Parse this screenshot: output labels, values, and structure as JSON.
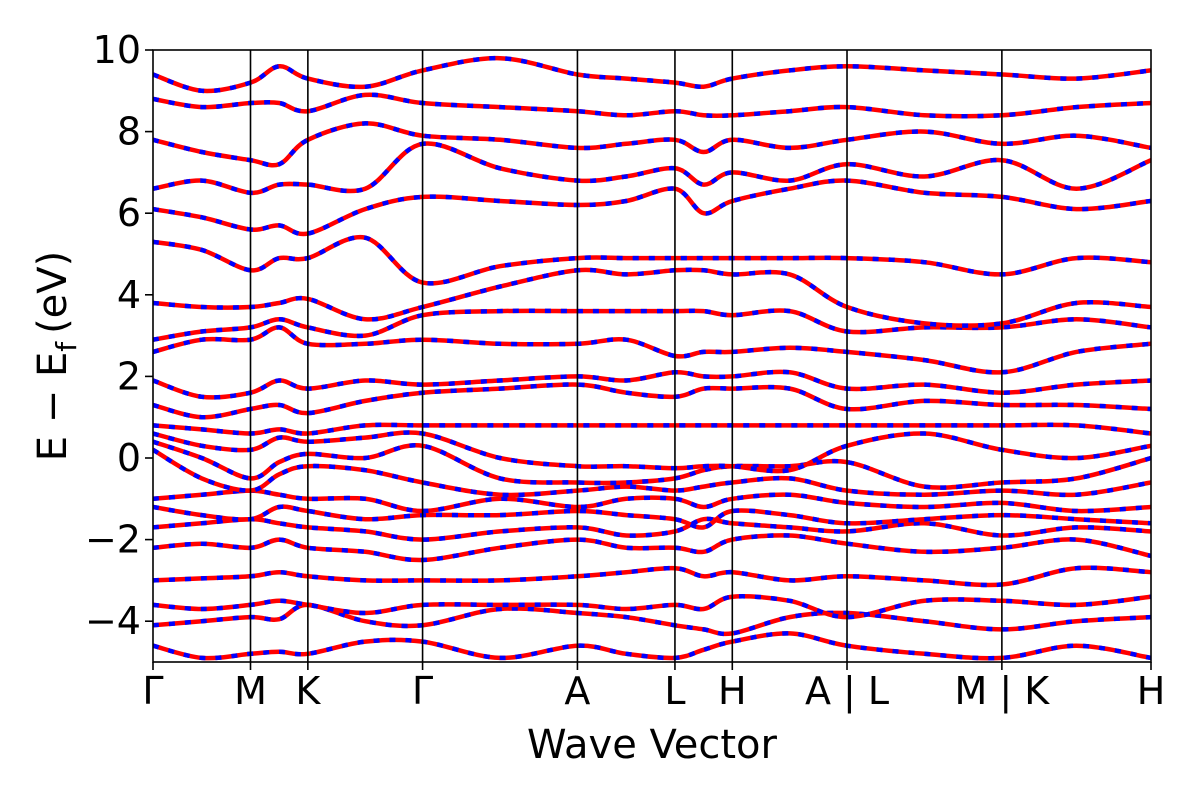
{
  "chart_data": {
    "type": "line",
    "title": "",
    "xlabel": "Wave Vector",
    "ylabel": {
      "main": "E − E",
      "subscript": "f",
      "unit": "(eV)"
    },
    "ylim": [
      -5,
      10
    ],
    "yticks": [
      "−4",
      "−2",
      "0",
      "2",
      "4",
      "6",
      "8",
      "10"
    ],
    "ytick_values": [
      -4,
      -2,
      0,
      2,
      4,
      6,
      8,
      10
    ],
    "grid": false,
    "legend": "none",
    "xlim": [
      0,
      1.74
    ],
    "kpoints": [
      {
        "label": "Γ",
        "x": 0.0
      },
      {
        "label": "M",
        "x": 0.17
      },
      {
        "label": "K",
        "x": 0.27
      },
      {
        "label": "Γ",
        "x": 0.47
      },
      {
        "label": "A",
        "x": 0.74
      },
      {
        "label": "L",
        "x": 0.91
      },
      {
        "label": "H",
        "x": 1.01
      },
      {
        "label": "A | L",
        "x": 1.21
      },
      {
        "label": "M | K",
        "x": 1.48
      },
      {
        "label": "H",
        "x": 1.74
      }
    ],
    "segments": [
      {
        "from": "Γ",
        "to": "M",
        "x": [
          0.0,
          0.085,
          0.17
        ]
      },
      {
        "from": "M",
        "to": "K",
        "x": [
          0.17,
          0.22,
          0.27
        ]
      },
      {
        "from": "K",
        "to": "Γ",
        "x": [
          0.27,
          0.37,
          0.47
        ]
      },
      {
        "from": "Γ",
        "to": "A",
        "x": [
          0.47,
          0.605,
          0.74
        ]
      },
      {
        "from": "A",
        "to": "L",
        "x": [
          0.74,
          0.825,
          0.91
        ]
      },
      {
        "from": "L",
        "to": "H",
        "x": [
          0.91,
          0.96,
          1.01
        ]
      },
      {
        "from": "H",
        "to": "A",
        "x": [
          1.01,
          1.11,
          1.21
        ]
      },
      {
        "from": "L",
        "to": "M",
        "x": [
          1.21,
          1.345,
          1.48
        ]
      },
      {
        "from": "K",
        "to": "H",
        "x": [
          1.48,
          1.61,
          1.74
        ]
      }
    ],
    "series": [
      {
        "color": "#ff0000",
        "overlay_color": "#0000ff",
        "bands": [
          [
            -4.6,
            -4.9,
            -4.8,
            -4.75,
            -4.8,
            -4.5,
            -4.5,
            -4.9,
            -4.6,
            -4.8,
            -4.9,
            -4.7,
            -4.5,
            -4.3,
            -4.6,
            -4.8,
            -4.9,
            -4.6,
            -4.9,
            -4.5,
            -4.4
          ],
          [
            -4.1,
            -4.0,
            -3.9,
            -3.95,
            -3.6,
            -4.0,
            -4.1,
            -3.7,
            -3.8,
            -3.9,
            -4.1,
            -4.2,
            -4.3,
            -3.9,
            -3.8,
            -4.0,
            -4.2,
            -4.0,
            -3.9,
            -4.1,
            -4.4
          ],
          [
            -3.6,
            -3.7,
            -3.6,
            -3.5,
            -3.6,
            -3.8,
            -3.6,
            -3.6,
            -3.6,
            -3.7,
            -3.6,
            -3.7,
            -3.4,
            -3.5,
            -3.9,
            -3.5,
            -3.5,
            -3.6,
            -3.4,
            -3.5,
            -3.4
          ],
          [
            -3.0,
            -2.95,
            -2.9,
            -2.8,
            -2.9,
            -3.0,
            -3.0,
            -3.0,
            -2.9,
            -2.8,
            -2.7,
            -2.9,
            -2.8,
            -3.0,
            -2.9,
            -3.0,
            -3.1,
            -2.7,
            -2.8,
            -2.9,
            -3.0
          ],
          [
            -2.2,
            -2.1,
            -2.2,
            -2.0,
            -2.2,
            -2.3,
            -2.5,
            -2.2,
            -2.0,
            -2.2,
            -2.2,
            -2.3,
            -2.0,
            -1.9,
            -2.1,
            -2.3,
            -2.2,
            -2.0,
            -2.4,
            -2.3,
            -2.2
          ],
          [
            -1.7,
            -1.6,
            -1.5,
            -1.6,
            -1.7,
            -1.8,
            -2.0,
            -1.8,
            -1.7,
            -1.9,
            -1.8,
            -1.5,
            -1.6,
            -1.7,
            -1.8,
            -1.6,
            -1.9,
            -1.7,
            -1.8,
            -1.9,
            -1.7
          ],
          [
            -1.2,
            -1.4,
            -1.5,
            -1.2,
            -1.3,
            -1.5,
            -1.4,
            -1.4,
            -1.3,
            -1.4,
            -1.5,
            -1.7,
            -1.3,
            -1.4,
            -1.6,
            -1.5,
            -1.4,
            -1.5,
            -1.6,
            -1.6,
            -1.7
          ],
          [
            -1.0,
            -0.9,
            -0.8,
            -0.9,
            -1.0,
            -1.0,
            -1.3,
            -1.0,
            -1.2,
            -1.0,
            -1.0,
            -1.2,
            -1.0,
            -0.9,
            -1.1,
            -1.2,
            -1.1,
            -1.3,
            -1.2,
            -1.4,
            -1.5
          ],
          [
            0.2,
            -0.5,
            -0.8,
            -0.4,
            -0.2,
            -0.3,
            -0.6,
            -0.9,
            -0.8,
            -0.7,
            -0.8,
            -0.7,
            -0.6,
            -0.5,
            -0.8,
            -0.9,
            -0.8,
            -0.9,
            -0.6,
            -0.7,
            -0.6
          ],
          [
            0.4,
            0.0,
            -0.5,
            -0.1,
            0.1,
            0.0,
            0.3,
            -0.5,
            -0.6,
            -0.6,
            -0.5,
            -0.3,
            -0.2,
            -0.2,
            -0.1,
            -0.7,
            -0.6,
            -0.5,
            0.0,
            -0.3,
            -0.5
          ],
          [
            0.6,
            0.3,
            0.2,
            0.5,
            0.4,
            0.5,
            0.6,
            0.0,
            -0.2,
            -0.2,
            -0.25,
            -0.2,
            -0.2,
            -0.3,
            0.3,
            0.6,
            0.2,
            0.0,
            0.3,
            0.1,
            0.0
          ],
          [
            0.8,
            0.7,
            0.6,
            0.7,
            0.6,
            0.8,
            0.8,
            0.8,
            0.8,
            0.8,
            0.8,
            0.8,
            0.8,
            0.8,
            0.8,
            0.8,
            0.8,
            0.8,
            0.6,
            0.8,
            0.8
          ],
          [
            1.3,
            1.0,
            1.2,
            1.3,
            1.1,
            1.4,
            1.6,
            1.7,
            1.8,
            1.6,
            1.5,
            1.7,
            1.7,
            1.7,
            1.2,
            1.4,
            1.3,
            1.3,
            1.2,
            1.5,
            1.4
          ],
          [
            1.9,
            1.5,
            1.6,
            1.9,
            1.7,
            1.9,
            1.8,
            1.9,
            2.0,
            1.9,
            2.1,
            2.0,
            2.0,
            2.1,
            1.7,
            1.8,
            1.6,
            1.8,
            1.9,
            1.9,
            2.2
          ],
          [
            2.6,
            2.9,
            2.9,
            3.2,
            2.8,
            2.8,
            2.9,
            2.8,
            2.8,
            2.9,
            2.5,
            2.6,
            2.6,
            2.7,
            2.6,
            2.4,
            2.1,
            2.6,
            2.8,
            2.7,
            2.7
          ],
          [
            2.9,
            3.1,
            3.2,
            3.4,
            3.2,
            3.0,
            3.5,
            3.6,
            3.6,
            3.6,
            3.6,
            3.6,
            3.5,
            3.6,
            3.1,
            3.2,
            3.2,
            3.4,
            3.2,
            3.5,
            3.5
          ],
          [
            3.8,
            3.7,
            3.7,
            3.8,
            3.9,
            3.4,
            3.7,
            4.2,
            4.6,
            4.5,
            4.6,
            4.6,
            4.5,
            4.5,
            3.7,
            3.3,
            3.3,
            3.8,
            3.7,
            3.6,
            3.6
          ],
          [
            5.3,
            5.1,
            4.6,
            4.9,
            4.9,
            5.4,
            4.3,
            4.7,
            4.9,
            4.9,
            4.9,
            4.9,
            4.9,
            4.9,
            4.9,
            4.8,
            4.5,
            4.9,
            4.8,
            5.0,
            4.9
          ],
          [
            6.1,
            5.9,
            5.6,
            5.7,
            5.5,
            6.1,
            6.4,
            6.3,
            6.2,
            6.3,
            6.6,
            6.0,
            6.3,
            6.6,
            6.8,
            6.5,
            6.4,
            6.1,
            6.3,
            6.0,
            5.6
          ],
          [
            6.6,
            6.8,
            6.5,
            6.7,
            6.7,
            6.6,
            7.7,
            7.1,
            6.8,
            6.9,
            7.1,
            6.7,
            7.0,
            6.8,
            7.2,
            6.9,
            7.3,
            6.6,
            7.3,
            6.9,
            7.5
          ],
          [
            7.8,
            7.5,
            7.3,
            7.2,
            7.8,
            8.2,
            7.9,
            7.8,
            7.6,
            7.7,
            7.8,
            7.5,
            7.8,
            7.6,
            7.8,
            8.0,
            7.7,
            7.9,
            7.6,
            8.0,
            7.9
          ],
          [
            8.8,
            8.6,
            8.7,
            8.7,
            8.5,
            8.9,
            8.7,
            8.6,
            8.5,
            8.4,
            8.5,
            8.4,
            8.4,
            8.5,
            8.6,
            8.4,
            8.4,
            8.6,
            8.7,
            8.5,
            8.4
          ],
          [
            9.4,
            9.0,
            9.2,
            9.6,
            9.3,
            9.1,
            9.5,
            9.8,
            9.4,
            9.3,
            9.2,
            9.1,
            9.3,
            9.5,
            9.6,
            9.5,
            9.4,
            9.3,
            9.5,
            9.4,
            9.5
          ]
        ]
      }
    ]
  }
}
